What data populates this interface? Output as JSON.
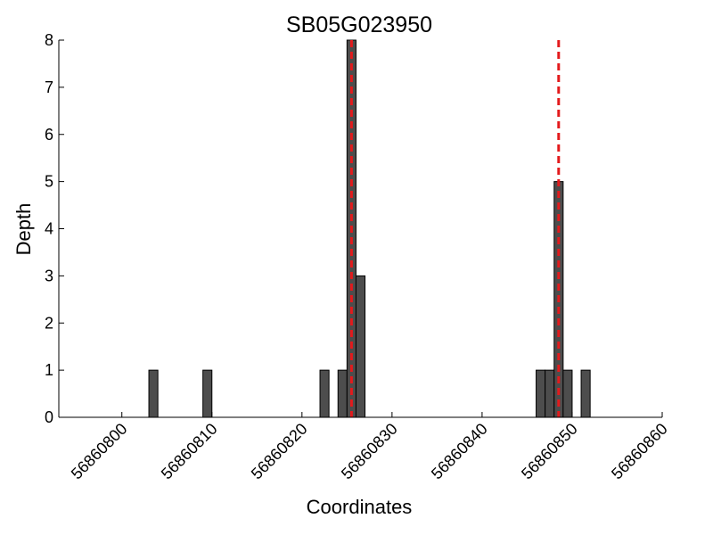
{
  "chart_data": {
    "type": "bar",
    "title": "SB05G023950",
    "xlabel": "Coordinates",
    "ylabel": "Depth",
    "xlim": [
      56860793,
      56860860
    ],
    "ylim": [
      0,
      8
    ],
    "xticks": [
      56860800,
      56860810,
      56860820,
      56860830,
      56860840,
      56860850,
      56860860
    ],
    "yticks": [
      0,
      1,
      2,
      3,
      4,
      5,
      6,
      7,
      8
    ],
    "grid": false,
    "bar_width": 1,
    "bars": [
      {
        "x": 56860803,
        "depth": 1
      },
      {
        "x": 56860809,
        "depth": 1
      },
      {
        "x": 56860822,
        "depth": 1
      },
      {
        "x": 56860824,
        "depth": 1
      },
      {
        "x": 56860825,
        "depth": 8
      },
      {
        "x": 56860826,
        "depth": 3
      },
      {
        "x": 56860846,
        "depth": 1
      },
      {
        "x": 56860847,
        "depth": 1
      },
      {
        "x": 56860848,
        "depth": 5
      },
      {
        "x": 56860849,
        "depth": 1
      },
      {
        "x": 56860851,
        "depth": 1
      }
    ],
    "reference_lines": [
      56860825.5,
      56860848.5
    ],
    "colors": {
      "bar_fill": "#4d4d4d",
      "bar_edge": "#000000",
      "reference_line": "#e31a1c"
    }
  }
}
